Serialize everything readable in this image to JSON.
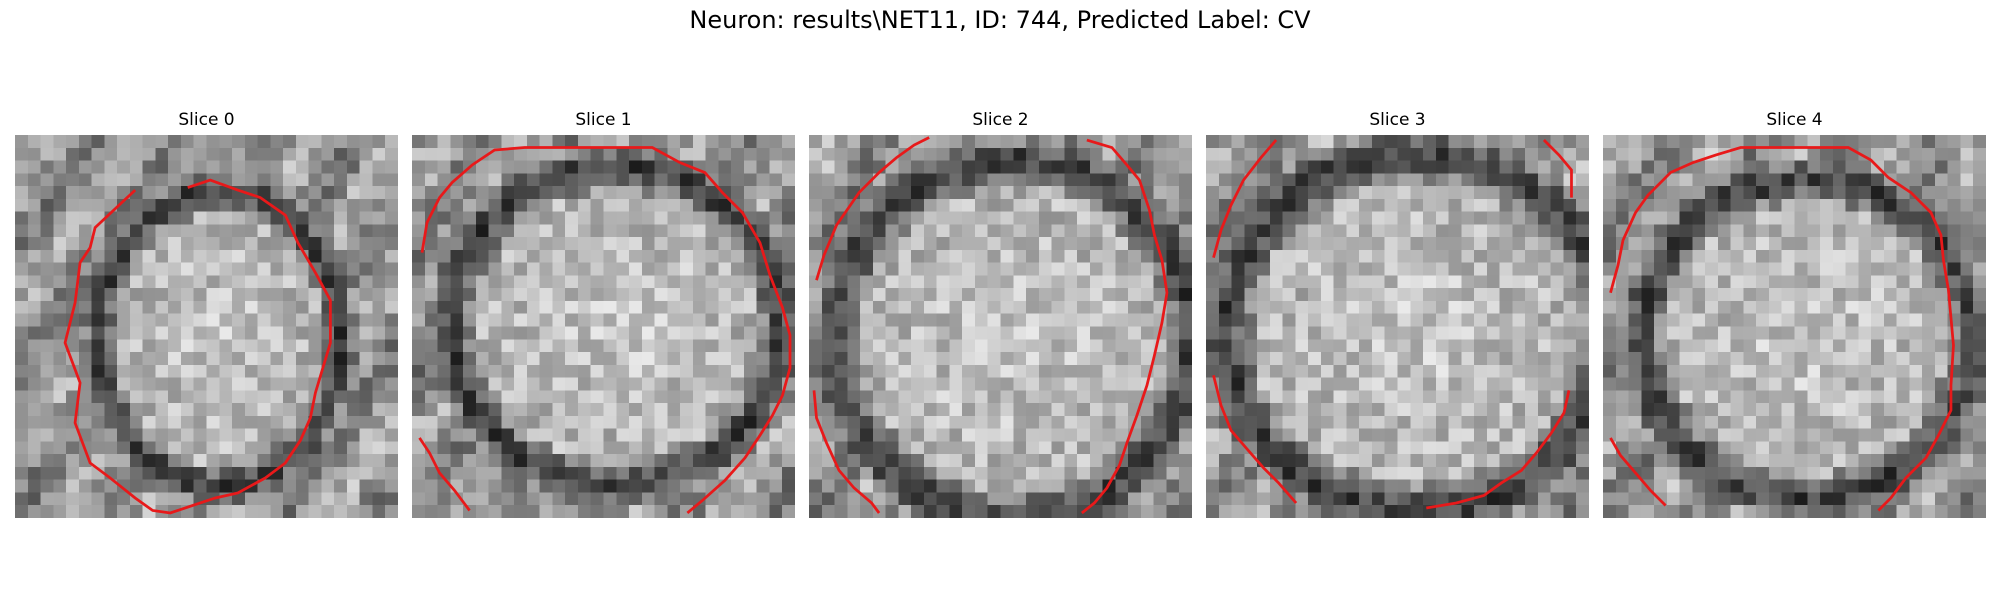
{
  "figure": {
    "title": "Neuron: results\\NET11, ID: 744, Predicted Label: CV"
  },
  "colors": {
    "contour": "#e8191a",
    "background": "#ffffff"
  },
  "slices": [
    {
      "title": "Slice 0",
      "image_name": "em-slice-0-image"
    },
    {
      "title": "Slice 1",
      "image_name": "em-slice-1-image"
    },
    {
      "title": "Slice 2",
      "image_name": "em-slice-2-image"
    },
    {
      "title": "Slice 3",
      "image_name": "em-slice-3-image"
    },
    {
      "title": "Slice 4",
      "image_name": "em-slice-4-image"
    }
  ]
}
